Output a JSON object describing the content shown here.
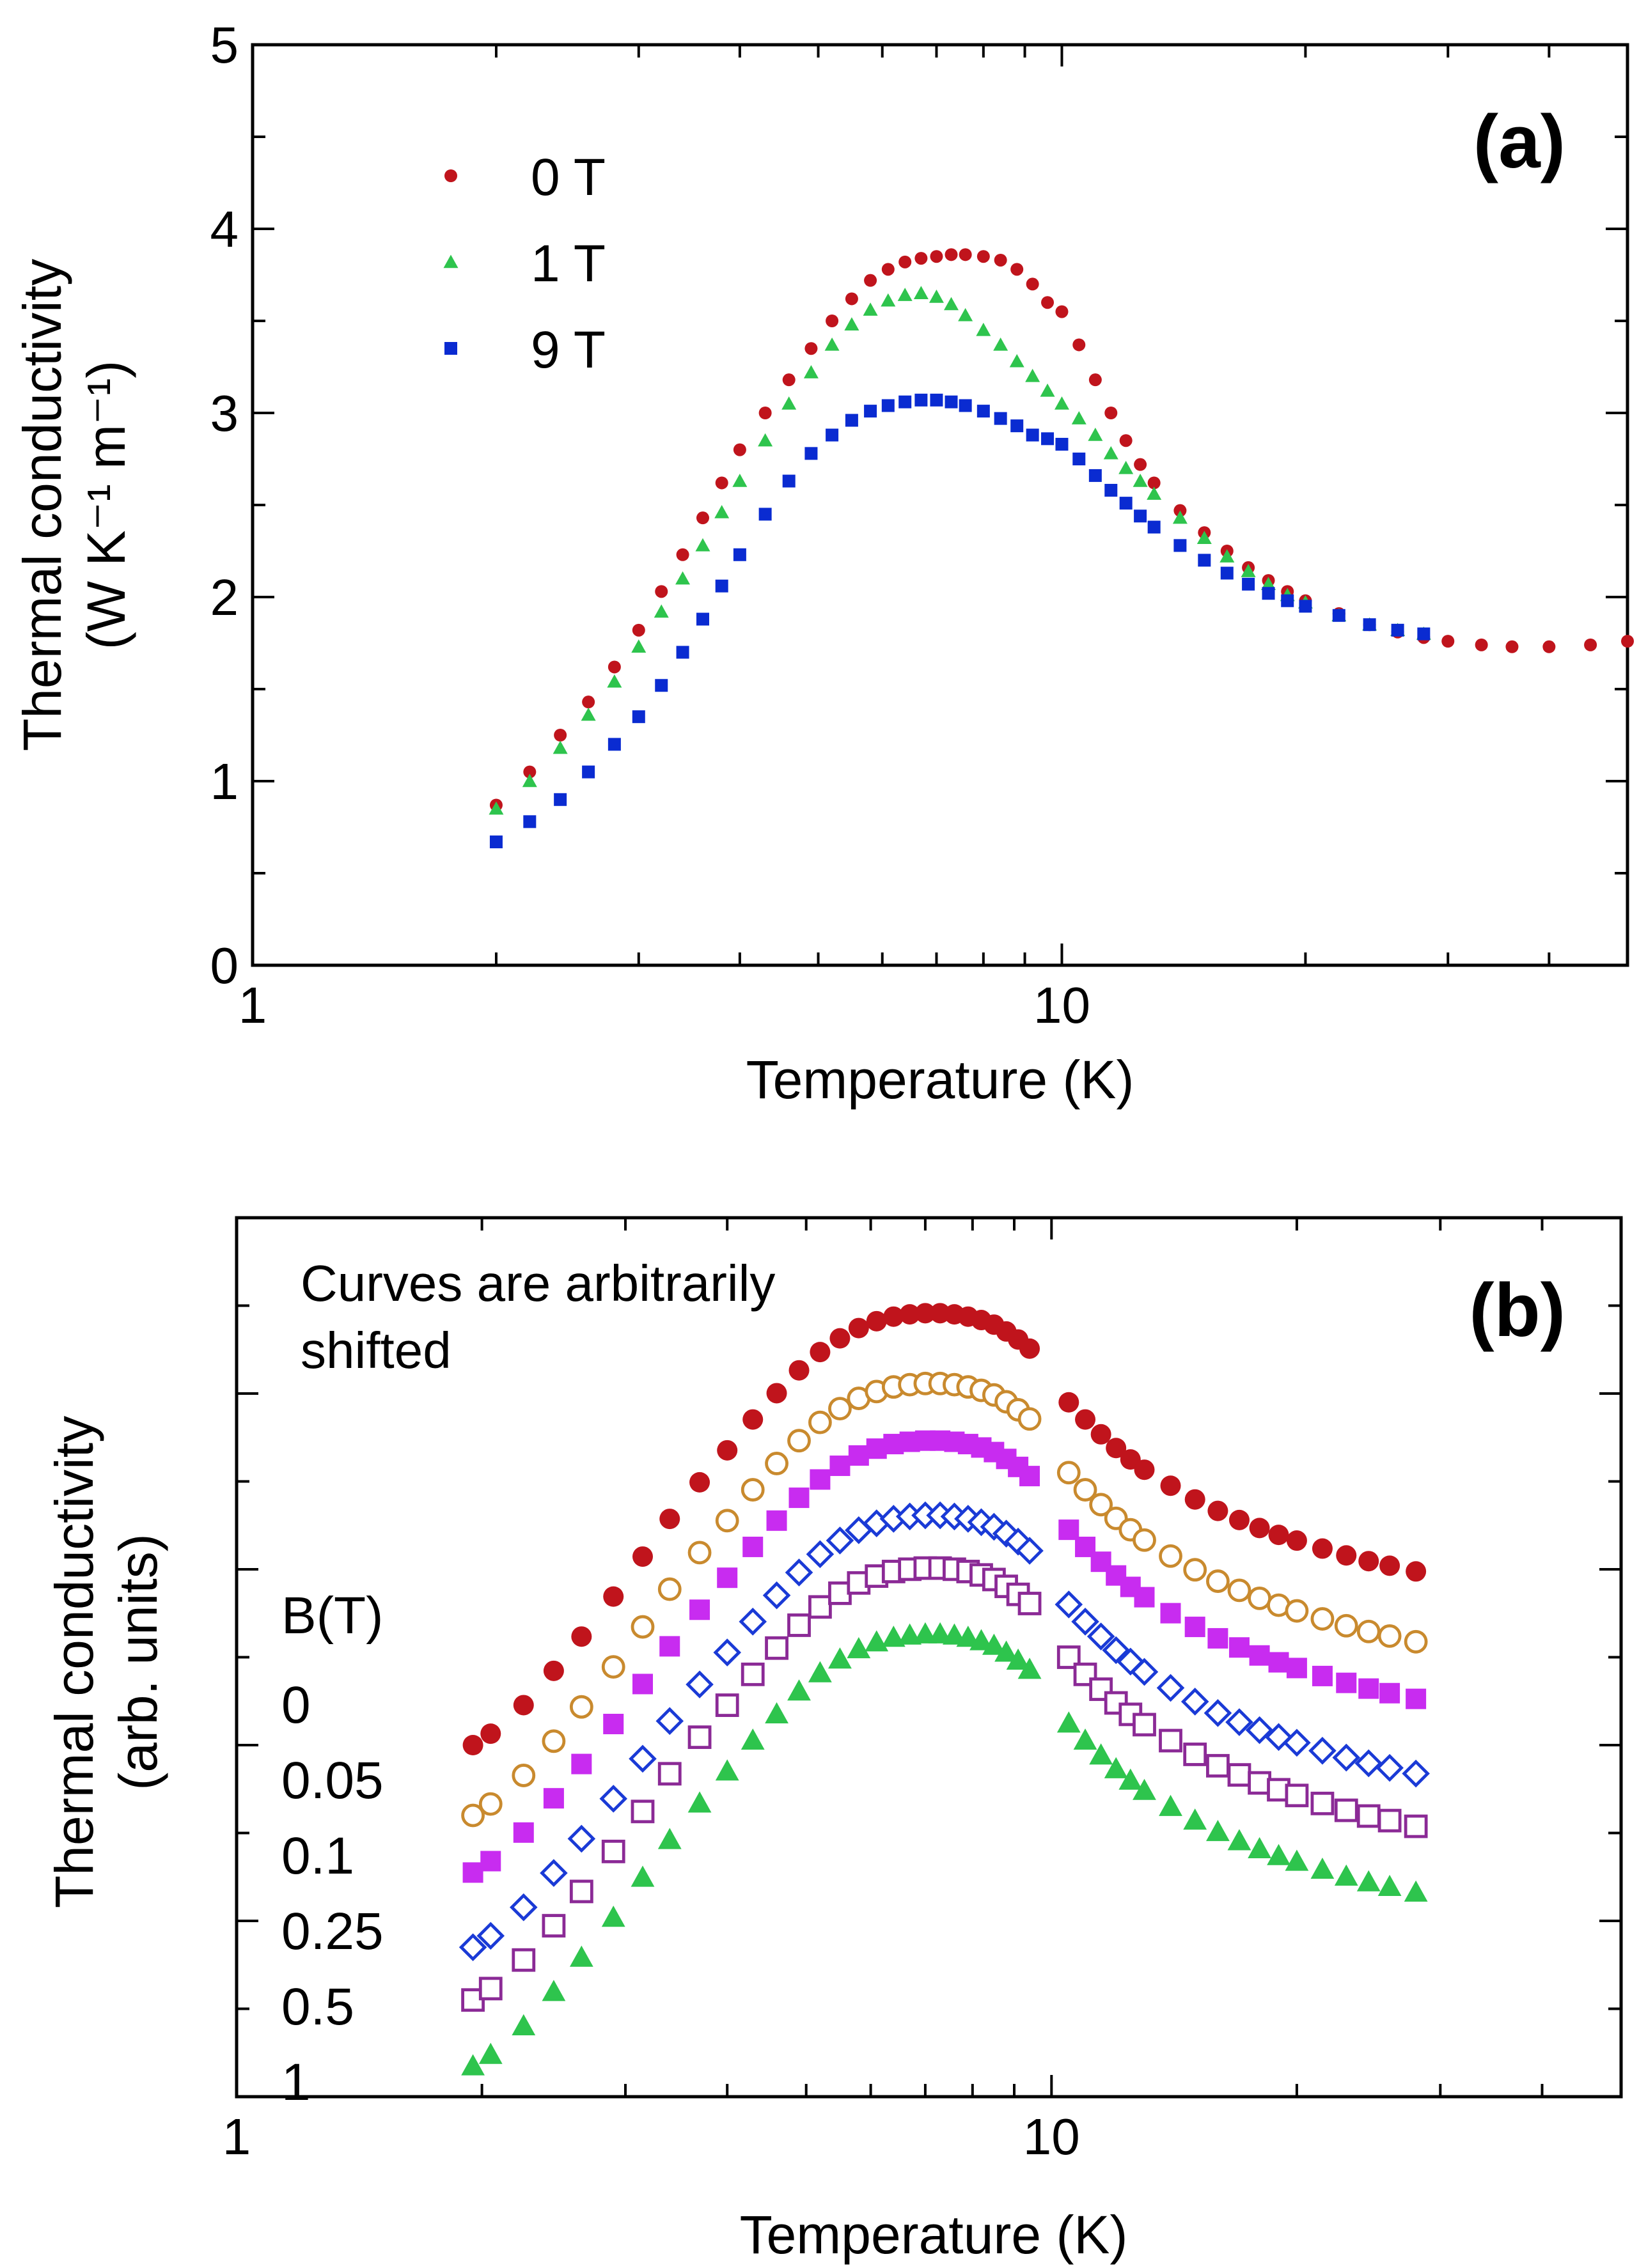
{
  "chart_data": [
    {
      "type": "scatter",
      "panel_label": "(a)",
      "xlabel": "Temperature (K)",
      "ylabel_line1": "Thermal conductivity",
      "ylabel_line2": "(W K⁻¹ m⁻¹)",
      "xscale": "log",
      "xlim": [
        1,
        50
      ],
      "ylim": [
        0,
        5
      ],
      "x_tick_labels": [
        {
          "value": 1,
          "label": "1"
        },
        {
          "value": 10,
          "label": "10"
        }
      ],
      "y_tick_labels": [
        {
          "value": 0,
          "label": "0"
        },
        {
          "value": 1,
          "label": "1"
        },
        {
          "value": 2,
          "label": "2"
        },
        {
          "value": 3,
          "label": "3"
        },
        {
          "value": 4,
          "label": "4"
        },
        {
          "value": 5,
          "label": "5"
        }
      ],
      "legend_position": "top-left",
      "series": [
        {
          "name": "0 T",
          "marker": "circle",
          "color": "#c0141c",
          "x": [
            2.0,
            2.2,
            2.4,
            2.6,
            2.8,
            3.0,
            3.2,
            3.4,
            3.6,
            3.8,
            4.0,
            4.3,
            4.6,
            4.9,
            5.2,
            5.5,
            5.8,
            6.1,
            6.4,
            6.7,
            7.0,
            7.3,
            7.6,
            8.0,
            8.4,
            8.8,
            9.2,
            9.6,
            10.0,
            10.5,
            11.0,
            11.5,
            12.0,
            12.5,
            13.0,
            14.0,
            15.0,
            16.0,
            17.0,
            18.0,
            19.0,
            20.0,
            22.0,
            24.0,
            26.0,
            28.0,
            30.0,
            33.0,
            36.0,
            40.0,
            45.0,
            50.0
          ],
          "y": [
            0.87,
            1.05,
            1.25,
            1.43,
            1.62,
            1.82,
            2.03,
            2.23,
            2.43,
            2.62,
            2.8,
            3.0,
            3.18,
            3.35,
            3.5,
            3.62,
            3.72,
            3.78,
            3.82,
            3.84,
            3.85,
            3.86,
            3.86,
            3.85,
            3.83,
            3.78,
            3.7,
            3.6,
            3.55,
            3.37,
            3.18,
            3.0,
            2.85,
            2.72,
            2.62,
            2.47,
            2.35,
            2.25,
            2.16,
            2.09,
            2.03,
            1.98,
            1.91,
            1.85,
            1.81,
            1.78,
            1.76,
            1.74,
            1.73,
            1.73,
            1.74,
            1.76
          ]
        },
        {
          "name": "1 T",
          "marker": "triangle",
          "color": "#2ec44d",
          "x": [
            2.0,
            2.2,
            2.4,
            2.6,
            2.8,
            3.0,
            3.2,
            3.4,
            3.6,
            3.8,
            4.0,
            4.3,
            4.6,
            4.9,
            5.2,
            5.5,
            5.8,
            6.1,
            6.4,
            6.7,
            7.0,
            7.3,
            7.6,
            8.0,
            8.4,
            8.8,
            9.2,
            9.6,
            10.0,
            10.5,
            11.0,
            11.5,
            12.0,
            12.5,
            13.0,
            14.0,
            15.0,
            16.0,
            17.0,
            18.0,
            19.0,
            20.0,
            22.0,
            24.0,
            26.0,
            28.0
          ],
          "y": [
            0.85,
            1.0,
            1.18,
            1.36,
            1.54,
            1.73,
            1.92,
            2.1,
            2.28,
            2.46,
            2.63,
            2.85,
            3.05,
            3.22,
            3.37,
            3.48,
            3.56,
            3.61,
            3.64,
            3.65,
            3.63,
            3.59,
            3.53,
            3.45,
            3.37,
            3.28,
            3.2,
            3.12,
            3.05,
            2.97,
            2.88,
            2.78,
            2.7,
            2.63,
            2.56,
            2.43,
            2.32,
            2.22,
            2.14,
            2.07,
            2.01,
            1.97,
            1.9,
            1.85,
            1.82,
            1.8
          ]
        },
        {
          "name": "9 T",
          "marker": "square",
          "color": "#0a2bd1",
          "x": [
            2.0,
            2.2,
            2.4,
            2.6,
            2.8,
            3.0,
            3.2,
            3.4,
            3.6,
            3.8,
            4.0,
            4.3,
            4.6,
            4.9,
            5.2,
            5.5,
            5.8,
            6.1,
            6.4,
            6.7,
            7.0,
            7.3,
            7.6,
            8.0,
            8.4,
            8.8,
            9.2,
            9.6,
            10.0,
            10.5,
            11.0,
            11.5,
            12.0,
            12.5,
            13.0,
            14.0,
            15.0,
            16.0,
            17.0,
            18.0,
            19.0,
            20.0,
            22.0,
            24.0,
            26.0,
            28.0
          ],
          "y": [
            0.67,
            0.78,
            0.9,
            1.05,
            1.2,
            1.35,
            1.52,
            1.7,
            1.88,
            2.06,
            2.23,
            2.45,
            2.63,
            2.78,
            2.88,
            2.96,
            3.01,
            3.04,
            3.06,
            3.07,
            3.07,
            3.06,
            3.04,
            3.01,
            2.97,
            2.93,
            2.88,
            2.86,
            2.83,
            2.75,
            2.66,
            2.58,
            2.51,
            2.44,
            2.38,
            2.28,
            2.2,
            2.13,
            2.07,
            2.02,
            1.98,
            1.95,
            1.9,
            1.85,
            1.82,
            1.8
          ]
        }
      ]
    },
    {
      "type": "scatter",
      "panel_label": "(b)",
      "annotation_line1": "Curves are arbitrarily",
      "annotation_line2": "shifted",
      "xlabel": "Temperature (K)",
      "ylabel_line1": "Thermal conductivity",
      "ylabel_line2": "(arb. units)",
      "xscale": "log",
      "xlim": [
        1,
        50
      ],
      "ylim": [
        0,
        10
      ],
      "x_tick_labels": [
        {
          "value": 1,
          "label": "1"
        },
        {
          "value": 10,
          "label": "10"
        }
      ],
      "legend_title": "B(T)",
      "legend_position": "left",
      "series": [
        {
          "name": "0",
          "marker": "circle-filled",
          "color": "#c0141c",
          "offset": 4.0
        },
        {
          "name": "0.05",
          "marker": "circle-open",
          "color": "#c98a2e",
          "offset": 3.2
        },
        {
          "name": "0.1",
          "marker": "square-filled",
          "color": "#c82cf0",
          "offset": 2.55
        },
        {
          "name": "0.25",
          "marker": "diamond-open",
          "color": "#1a3ad6",
          "offset": 1.7
        },
        {
          "name": "0.5",
          "marker": "square-open",
          "color": "#8b2a96",
          "offset": 1.1
        },
        {
          "name": "1",
          "marker": "triangle-filled",
          "color": "#2ec44d",
          "offset": 0.35
        }
      ],
      "shared_x": [
        1.95,
        2.05,
        2.25,
        2.45,
        2.65,
        2.9,
        3.15,
        3.4,
        3.7,
        4.0,
        4.3,
        4.6,
        4.9,
        5.2,
        5.5,
        5.8,
        6.1,
        6.4,
        6.7,
        7.0,
        7.3,
        7.6,
        7.9,
        8.2,
        8.5,
        8.8,
        9.1,
        9.4,
        10.5,
        11.0,
        11.5,
        12.0,
        12.5,
        13.0,
        14.0,
        15.0,
        16.0,
        17.0,
        18.0,
        19.0,
        20.0,
        21.5,
        23.0,
        24.5,
        26.0,
        28.0
      ],
      "shared_shape": [
        0.0,
        0.1,
        0.35,
        0.65,
        0.95,
        1.3,
        1.65,
        1.98,
        2.3,
        2.58,
        2.85,
        3.08,
        3.28,
        3.44,
        3.56,
        3.65,
        3.71,
        3.75,
        3.77,
        3.78,
        3.78,
        3.77,
        3.75,
        3.72,
        3.68,
        3.62,
        3.55,
        3.47,
        3.0,
        2.85,
        2.72,
        2.6,
        2.5,
        2.41,
        2.27,
        2.15,
        2.05,
        1.97,
        1.9,
        1.84,
        1.79,
        1.72,
        1.66,
        1.61,
        1.57,
        1.52
      ]
    }
  ]
}
